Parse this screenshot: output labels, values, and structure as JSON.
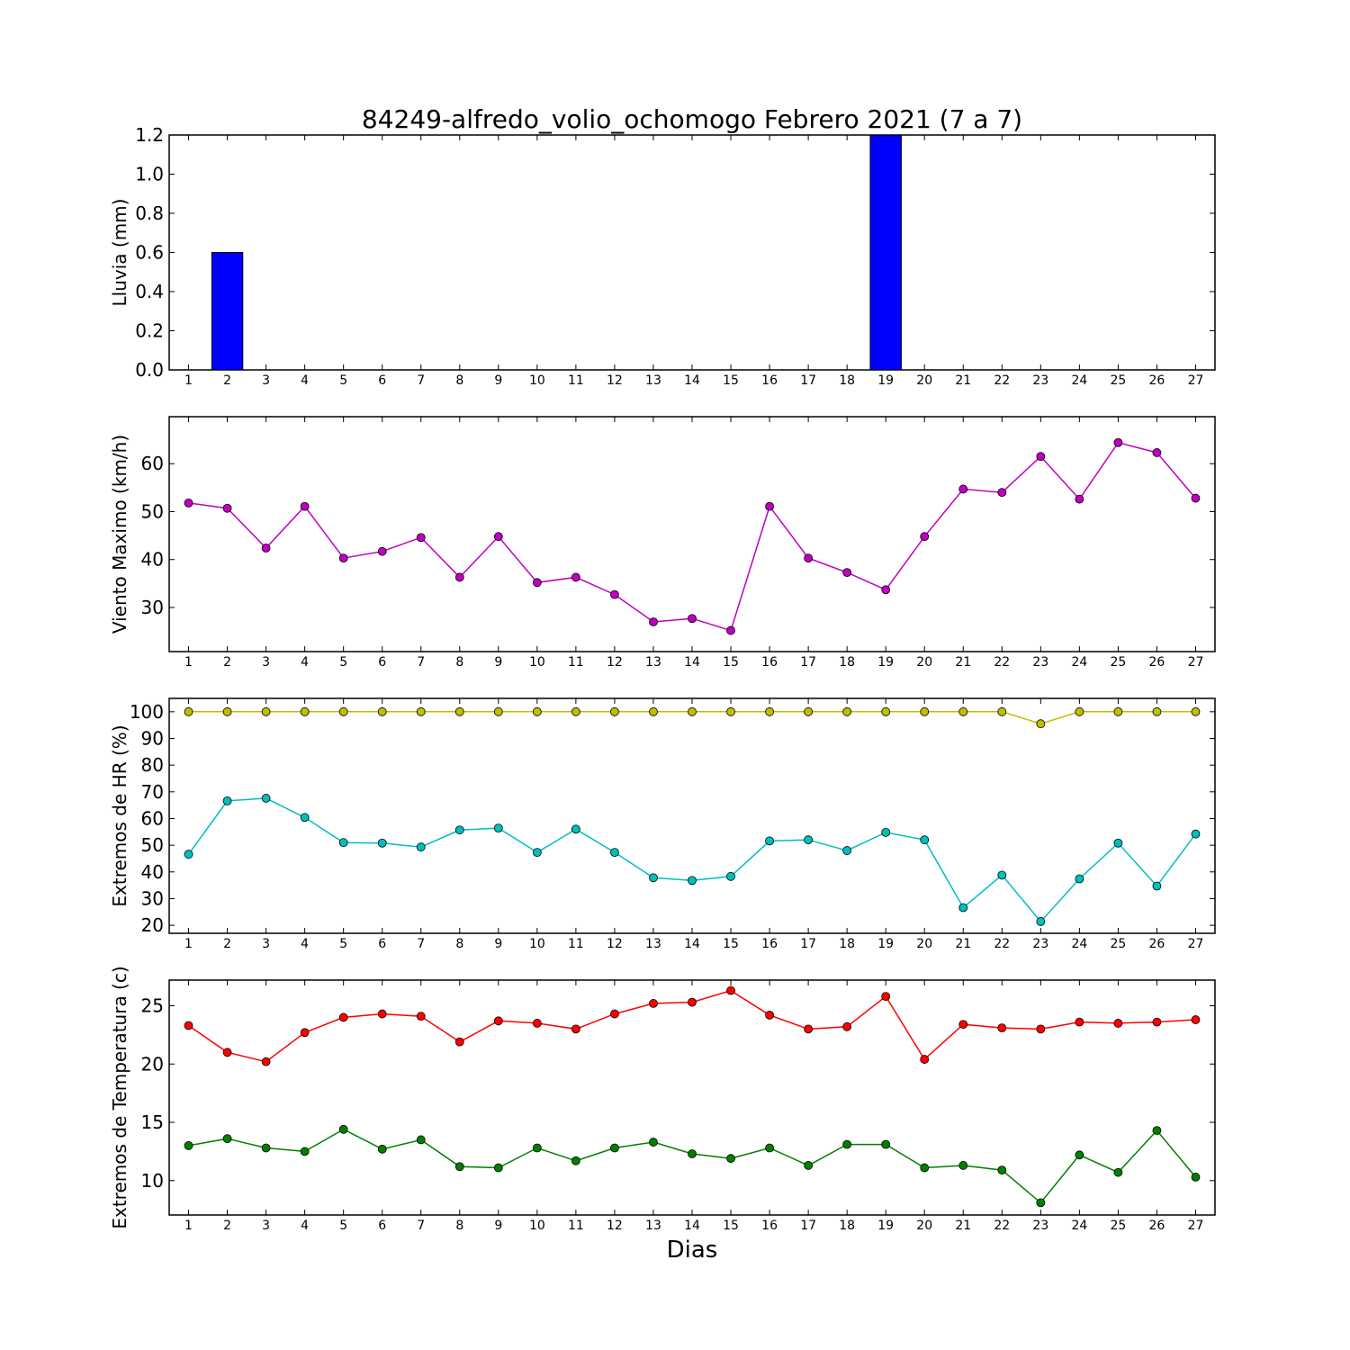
{
  "figure": {
    "title": "84249-alfredo_volio_ochomogo Febrero 2021  (7 a 7)",
    "xlabel": "Dias"
  },
  "chart_data": [
    {
      "type": "bar",
      "ylabel": "Lluvia (mm)",
      "ylim": [
        0,
        1.2
      ],
      "yticks": [
        0.0,
        0.2,
        0.4,
        0.6,
        0.8,
        1.0,
        1.2
      ],
      "ytick_labels": [
        "0.0",
        "0.2",
        "0.4",
        "0.6",
        "0.8",
        "1.0",
        "1.2"
      ],
      "categories": [
        "1",
        "2",
        "3",
        "4",
        "5",
        "6",
        "7",
        "8",
        "9",
        "10",
        "11",
        "12",
        "13",
        "14",
        "15",
        "16",
        "17",
        "18",
        "19",
        "20",
        "21",
        "22",
        "23",
        "24",
        "25",
        "26",
        "27"
      ],
      "series": [
        {
          "color": "#0000ff",
          "values": [
            0,
            0.6,
            0,
            0,
            0,
            0,
            0,
            0,
            0,
            0,
            0,
            0,
            0,
            0,
            0,
            0,
            0,
            0,
            1.2,
            0,
            0,
            0,
            0,
            0,
            0,
            0,
            0
          ]
        }
      ],
      "grid": false
    },
    {
      "type": "line",
      "ylabel": "Viento Maximo (km/h)",
      "ylim": [
        20.8,
        69.8
      ],
      "yticks": [
        30,
        40,
        50,
        60
      ],
      "ytick_labels": [
        "30",
        "40",
        "50",
        "60"
      ],
      "categories": [
        "1",
        "2",
        "3",
        "4",
        "5",
        "6",
        "7",
        "8",
        "9",
        "10",
        "11",
        "12",
        "13",
        "14",
        "15",
        "16",
        "17",
        "18",
        "19",
        "20",
        "21",
        "22",
        "23",
        "24",
        "25",
        "26",
        "27"
      ],
      "series": [
        {
          "color": "#bf00bf",
          "values": [
            51.8,
            50.7,
            42.4,
            51.1,
            40.3,
            41.7,
            44.6,
            36.3,
            44.8,
            35.2,
            36.3,
            32.7,
            27.0,
            27.7,
            25.2,
            51.1,
            40.3,
            37.3,
            33.7,
            44.8,
            54.7,
            54.0,
            61.5,
            52.6,
            64.4,
            62.3,
            52.8
          ]
        }
      ],
      "grid": false
    },
    {
      "type": "line",
      "ylabel": "Extremos de HR (%)",
      "ylim": [
        17,
        105
      ],
      "yticks": [
        20,
        30,
        40,
        50,
        60,
        70,
        80,
        90,
        100
      ],
      "ytick_labels": [
        "20",
        "30",
        "40",
        "50",
        "60",
        "70",
        "80",
        "90",
        "100"
      ],
      "categories": [
        "1",
        "2",
        "3",
        "4",
        "5",
        "6",
        "7",
        "8",
        "9",
        "10",
        "11",
        "12",
        "13",
        "14",
        "15",
        "16",
        "17",
        "18",
        "19",
        "20",
        "21",
        "22",
        "23",
        "24",
        "25",
        "26",
        "27"
      ],
      "series": [
        {
          "color": "#bfbf00",
          "values": [
            100,
            100,
            100,
            100,
            100,
            100,
            100,
            100,
            100,
            100,
            100,
            100,
            100,
            100,
            100,
            100,
            100,
            100,
            100,
            100,
            100,
            100,
            95.5,
            100,
            100,
            100,
            100
          ]
        },
        {
          "color": "#00bfbf",
          "values": [
            46.6,
            66.6,
            67.6,
            60.4,
            51.0,
            50.8,
            49.3,
            55.7,
            56.4,
            47.3,
            56.0,
            47.3,
            37.8,
            36.8,
            38.3,
            51.6,
            52.0,
            48.0,
            54.8,
            52.0,
            26.6,
            38.8,
            21.4,
            37.4,
            50.8,
            34.7,
            54.2
          ]
        }
      ],
      "grid": false
    },
    {
      "type": "line",
      "ylabel": "Extremos de Temperatura (c)",
      "ylim": [
        7.05,
        27.2
      ],
      "yticks": [
        10,
        15,
        20,
        25
      ],
      "ytick_labels": [
        "10",
        "15",
        "20",
        "25"
      ],
      "categories": [
        "1",
        "2",
        "3",
        "4",
        "5",
        "6",
        "7",
        "8",
        "9",
        "10",
        "11",
        "12",
        "13",
        "14",
        "15",
        "16",
        "17",
        "18",
        "19",
        "20",
        "21",
        "22",
        "23",
        "24",
        "25",
        "26",
        "27"
      ],
      "series": [
        {
          "color": "#ff0000",
          "values": [
            23.3,
            21.0,
            20.2,
            22.7,
            24.0,
            24.3,
            24.1,
            21.9,
            23.7,
            23.5,
            23.0,
            24.3,
            25.2,
            25.3,
            26.3,
            24.2,
            23.0,
            23.2,
            25.8,
            20.4,
            23.4,
            23.1,
            23.0,
            23.6,
            23.5,
            23.6,
            23.8
          ]
        },
        {
          "color": "#007f00",
          "values": [
            13.0,
            13.6,
            12.8,
            12.5,
            14.4,
            12.7,
            13.5,
            11.2,
            11.1,
            12.8,
            11.7,
            12.8,
            13.3,
            12.3,
            11.9,
            12.8,
            11.3,
            13.1,
            13.1,
            11.1,
            11.3,
            10.9,
            8.1,
            12.2,
            10.7,
            14.3,
            10.3
          ]
        }
      ],
      "grid": false
    }
  ]
}
